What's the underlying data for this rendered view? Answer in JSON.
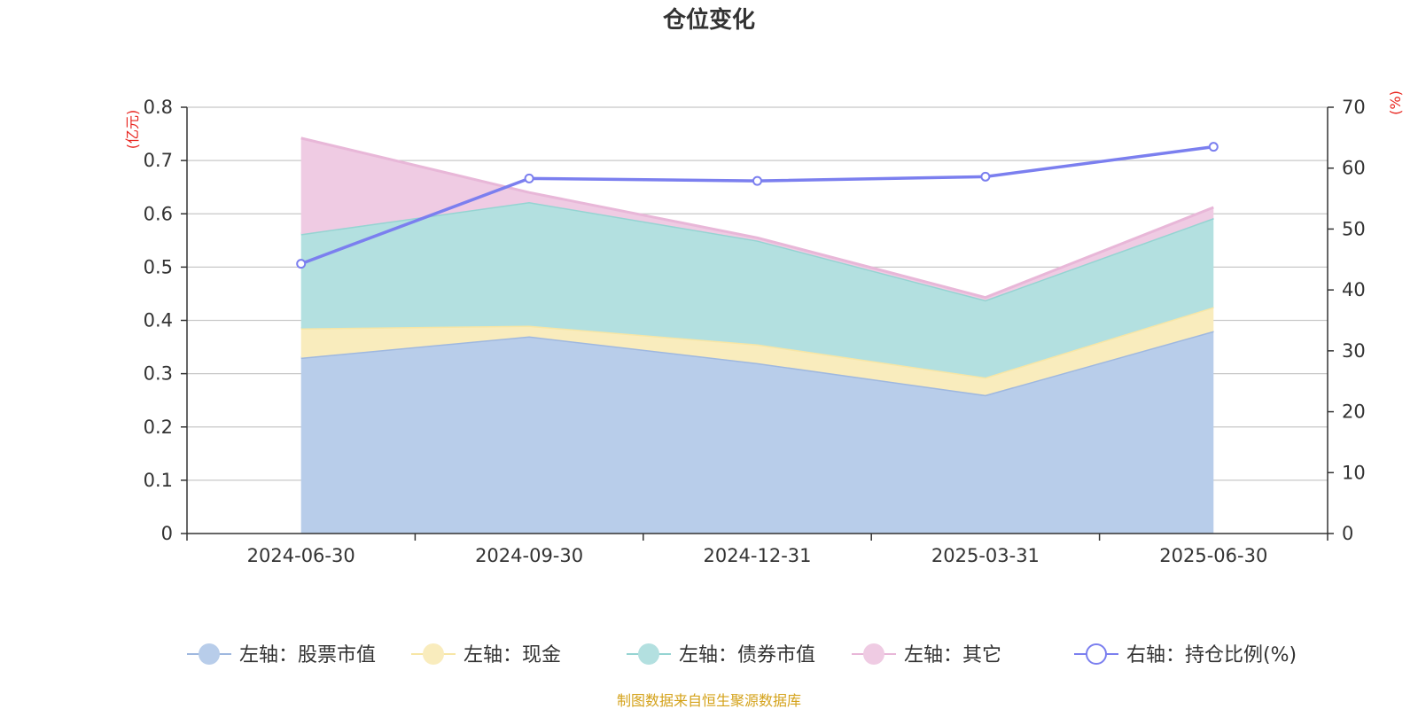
{
  "chart_data": {
    "type": "area",
    "title": "仓位变化",
    "categories": [
      "2024-06-30",
      "2024-09-30",
      "2024-12-31",
      "2025-03-31",
      "2025-06-30"
    ],
    "y_left": {
      "unit": "(亿元)",
      "range": [
        0,
        0.8
      ],
      "ticks": [
        "0",
        "0.1",
        "0.2",
        "0.3",
        "0.4",
        "0.5",
        "0.6",
        "0.7",
        "0.8"
      ]
    },
    "y_right": {
      "unit": "(%)",
      "range": [
        0,
        70
      ],
      "ticks": [
        "0",
        "10",
        "20",
        "30",
        "40",
        "50",
        "60",
        "70"
      ]
    },
    "stacked_series": [
      {
        "name": "左轴：股票市值",
        "values": [
          0.33,
          0.37,
          0.32,
          0.26,
          0.38
        ],
        "line_color": "#9fb8df",
        "fill_color": "#b8cdea"
      },
      {
        "name": "左轴：现金",
        "values": [
          0.055,
          0.02,
          0.035,
          0.033,
          0.045
        ],
        "line_color": "#f7e6a6",
        "fill_color": "#f9ecbd"
      },
      {
        "name": "左轴：债券市值",
        "values": [
          0.177,
          0.232,
          0.195,
          0.145,
          0.167
        ],
        "line_color": "#95d4d2",
        "fill_color": "#b3e0e0"
      },
      {
        "name": "左轴：其它",
        "values": [
          0.18,
          0.018,
          0.005,
          0.005,
          0.02
        ],
        "line_color": "#e8b7d8",
        "fill_color": "#efcbe3"
      }
    ],
    "line_series": {
      "name": "右轴：持仓比例(%)",
      "values": [
        44.3,
        58.3,
        57.9,
        58.6,
        63.5
      ],
      "color": "#7b7fef"
    },
    "grid": true,
    "legend_position": "bottom"
  },
  "source": {
    "text": "制图数据来自恒生聚源数据库",
    "color": "#d4a21a"
  },
  "colors": {
    "axis_unit": "#e8251f",
    "gridline": "#c8c8c8",
    "axis": "#333333"
  }
}
